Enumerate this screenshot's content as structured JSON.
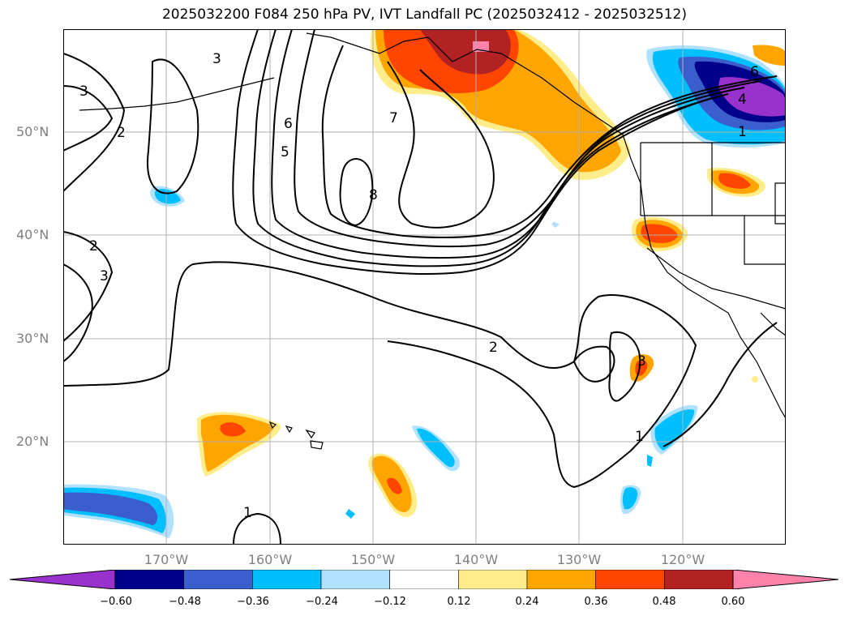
{
  "title": "2025032200 F084 250 hPa PV, IVT Landfall PC (2025032412 - 2025032512)",
  "lat_labels": [
    "50°N",
    "40°N",
    "30°N",
    "20°N"
  ],
  "lon_labels": [
    "170°W",
    "160°W",
    "150°W",
    "140°W",
    "130°W",
    "120°W"
  ],
  "contour_labels": [
    "3",
    "2",
    "2",
    "3",
    "3",
    "6",
    "5",
    "7",
    "8",
    "2",
    "1",
    "1",
    "3",
    "6",
    "4",
    "1"
  ],
  "colorbar": {
    "ticks": [
      "−0.60",
      "−0.48",
      "−0.36",
      "−0.24",
      "−0.12",
      "0.12",
      "0.24",
      "0.36",
      "0.48",
      "0.60"
    ],
    "colors": [
      "#9932cc",
      "#00008b",
      "#3a5fcd",
      "#00bfff",
      "#b0e2ff",
      "#ffffff",
      "#ffec8b",
      "#ffa500",
      "#ff4500",
      "#b22222",
      "#ff82ab"
    ]
  }
}
